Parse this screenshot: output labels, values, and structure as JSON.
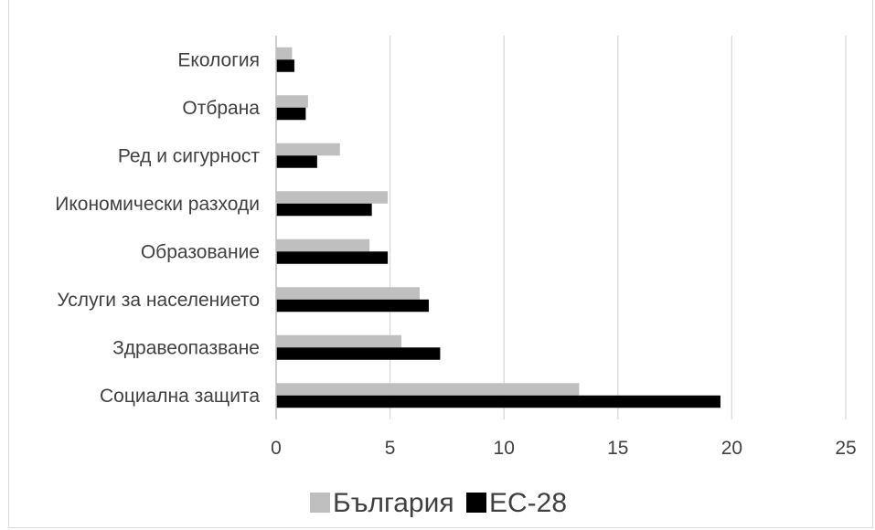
{
  "chart_data": {
    "type": "bar",
    "orientation": "horizontal",
    "categories": [
      "Екология",
      "Отбрана",
      "Ред и сигурност",
      "Икономически разходи",
      "Образование",
      "Услуги за населението",
      "Здравеопазване",
      "Социална защита"
    ],
    "series": [
      {
        "name": "България",
        "color": "#bfbfbf",
        "values": [
          0.7,
          1.4,
          2.8,
          4.9,
          4.1,
          6.3,
          5.5,
          13.3
        ]
      },
      {
        "name": "ЕС-28",
        "color": "#000000",
        "values": [
          0.8,
          1.3,
          1.8,
          4.2,
          4.9,
          6.7,
          7.2,
          19.5
        ]
      }
    ],
    "xlim": [
      0,
      25
    ],
    "x_ticks": [
      "0",
      "5",
      "10",
      "15",
      "20",
      "25"
    ],
    "grid": "vertical",
    "legend": "bottom-center"
  }
}
